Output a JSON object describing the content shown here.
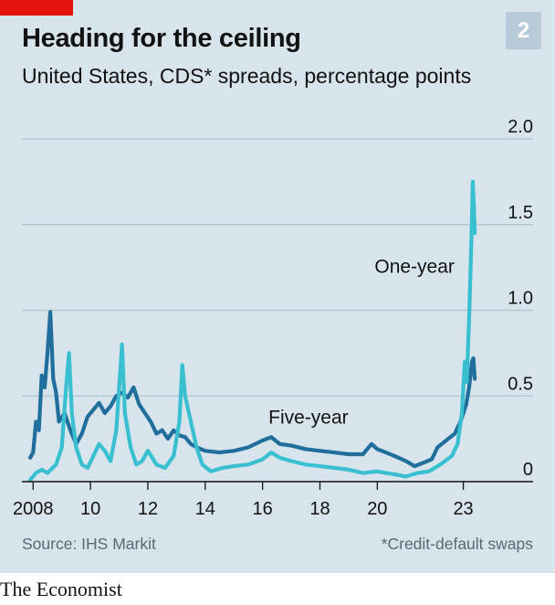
{
  "header": {
    "title": "Heading for the ceiling",
    "subtitle": "United States, CDS* spreads, percentage points",
    "badge": "2"
  },
  "footer": {
    "source": "Source: IHS Markit",
    "footnote": "*Credit-default swaps",
    "logo": "The Economist"
  },
  "colors": {
    "background": "#d7e4ec",
    "five_year": "#1f6e9c",
    "one_year": "#39c0d0",
    "gridline": "#b0c4cf",
    "axis": "#121212",
    "accent": "#e3120b"
  },
  "chart_data": {
    "type": "line",
    "title": "Heading for the ceiling",
    "subtitle": "United States, CDS* spreads, percentage points",
    "xlabel": "",
    "ylabel": "",
    "xlim": [
      2007.8,
      2023.65
    ],
    "ylim": [
      0,
      2.0
    ],
    "yticks": [
      0,
      0.5,
      1.0,
      1.5,
      2.0
    ],
    "ytick_labels": [
      "0",
      "0.5",
      "1.0",
      "1.5",
      "2.0"
    ],
    "yaxis_position": "right",
    "xticks": [
      2008,
      2010,
      2012,
      2014,
      2016,
      2018,
      2020,
      2023
    ],
    "xtick_labels": [
      "2008",
      "10",
      "12",
      "14",
      "16",
      "18",
      "20",
      "23"
    ],
    "grid": true,
    "legend": "inline labels",
    "series": [
      {
        "name": "Five-year",
        "color": "#1f6e9c",
        "label_at": [
          2017.6,
          0.34
        ],
        "points": [
          [
            2007.9,
            0.14
          ],
          [
            2008.0,
            0.17
          ],
          [
            2008.1,
            0.35
          ],
          [
            2008.2,
            0.3
          ],
          [
            2008.3,
            0.62
          ],
          [
            2008.4,
            0.55
          ],
          [
            2008.5,
            0.75
          ],
          [
            2008.6,
            0.99
          ],
          [
            2008.7,
            0.6
          ],
          [
            2008.8,
            0.52
          ],
          [
            2008.9,
            0.35
          ],
          [
            2009.1,
            0.4
          ],
          [
            2009.3,
            0.3
          ],
          [
            2009.5,
            0.22
          ],
          [
            2009.7,
            0.28
          ],
          [
            2009.9,
            0.38
          ],
          [
            2010.1,
            0.42
          ],
          [
            2010.3,
            0.46
          ],
          [
            2010.5,
            0.4
          ],
          [
            2010.7,
            0.44
          ],
          [
            2010.9,
            0.5
          ],
          [
            2011.1,
            0.52
          ],
          [
            2011.3,
            0.49
          ],
          [
            2011.5,
            0.55
          ],
          [
            2011.7,
            0.45
          ],
          [
            2011.9,
            0.4
          ],
          [
            2012.1,
            0.35
          ],
          [
            2012.3,
            0.28
          ],
          [
            2012.5,
            0.3
          ],
          [
            2012.7,
            0.25
          ],
          [
            2012.9,
            0.3
          ],
          [
            2013.1,
            0.27
          ],
          [
            2013.3,
            0.26
          ],
          [
            2013.5,
            0.22
          ],
          [
            2013.7,
            0.2
          ],
          [
            2014.0,
            0.18
          ],
          [
            2014.5,
            0.17
          ],
          [
            2015.0,
            0.18
          ],
          [
            2015.5,
            0.2
          ],
          [
            2016.0,
            0.24
          ],
          [
            2016.3,
            0.26
          ],
          [
            2016.6,
            0.22
          ],
          [
            2017.0,
            0.21
          ],
          [
            2017.5,
            0.19
          ],
          [
            2018.0,
            0.18
          ],
          [
            2018.5,
            0.17
          ],
          [
            2019.0,
            0.16
          ],
          [
            2019.5,
            0.16
          ],
          [
            2019.8,
            0.22
          ],
          [
            2020.0,
            0.19
          ],
          [
            2020.3,
            0.17
          ],
          [
            2020.6,
            0.15
          ],
          [
            2021.0,
            0.12
          ],
          [
            2021.3,
            0.09
          ],
          [
            2021.6,
            0.11
          ],
          [
            2021.9,
            0.13
          ],
          [
            2022.1,
            0.2
          ],
          [
            2022.4,
            0.24
          ],
          [
            2022.7,
            0.28
          ],
          [
            2022.9,
            0.35
          ],
          [
            2023.0,
            0.4
          ],
          [
            2023.1,
            0.45
          ],
          [
            2023.2,
            0.55
          ],
          [
            2023.3,
            0.7
          ],
          [
            2023.35,
            0.72
          ],
          [
            2023.4,
            0.6
          ]
        ]
      },
      {
        "name": "One-year",
        "color": "#39c0d0",
        "label_at": [
          2021.3,
          1.22
        ],
        "points": [
          [
            2007.9,
            0.01
          ],
          [
            2008.1,
            0.05
          ],
          [
            2008.3,
            0.07
          ],
          [
            2008.5,
            0.05
          ],
          [
            2008.8,
            0.1
          ],
          [
            2009.0,
            0.2
          ],
          [
            2009.15,
            0.55
          ],
          [
            2009.25,
            0.75
          ],
          [
            2009.35,
            0.4
          ],
          [
            2009.5,
            0.2
          ],
          [
            2009.7,
            0.1
          ],
          [
            2009.9,
            0.08
          ],
          [
            2010.1,
            0.15
          ],
          [
            2010.3,
            0.22
          ],
          [
            2010.5,
            0.18
          ],
          [
            2010.7,
            0.12
          ],
          [
            2010.9,
            0.3
          ],
          [
            2011.0,
            0.55
          ],
          [
            2011.1,
            0.8
          ],
          [
            2011.2,
            0.4
          ],
          [
            2011.4,
            0.2
          ],
          [
            2011.6,
            0.1
          ],
          [
            2011.8,
            0.12
          ],
          [
            2012.0,
            0.18
          ],
          [
            2012.3,
            0.1
          ],
          [
            2012.6,
            0.08
          ],
          [
            2012.9,
            0.15
          ],
          [
            2013.1,
            0.35
          ],
          [
            2013.2,
            0.68
          ],
          [
            2013.3,
            0.5
          ],
          [
            2013.5,
            0.35
          ],
          [
            2013.7,
            0.2
          ],
          [
            2013.9,
            0.1
          ],
          [
            2014.2,
            0.06
          ],
          [
            2014.6,
            0.08
          ],
          [
            2015.0,
            0.09
          ],
          [
            2015.5,
            0.1
          ],
          [
            2016.0,
            0.13
          ],
          [
            2016.3,
            0.17
          ],
          [
            2016.6,
            0.14
          ],
          [
            2017.0,
            0.12
          ],
          [
            2017.5,
            0.1
          ],
          [
            2018.0,
            0.09
          ],
          [
            2018.5,
            0.08
          ],
          [
            2019.0,
            0.07
          ],
          [
            2019.5,
            0.05
          ],
          [
            2020.0,
            0.06
          ],
          [
            2020.3,
            0.05
          ],
          [
            2020.7,
            0.04
          ],
          [
            2021.0,
            0.03
          ],
          [
            2021.4,
            0.05
          ],
          [
            2021.8,
            0.06
          ],
          [
            2022.2,
            0.1
          ],
          [
            2022.6,
            0.15
          ],
          [
            2022.8,
            0.22
          ],
          [
            2022.95,
            0.4
          ],
          [
            2023.05,
            0.7
          ],
          [
            2023.12,
            0.58
          ],
          [
            2023.2,
            0.95
          ],
          [
            2023.28,
            1.4
          ],
          [
            2023.33,
            1.75
          ],
          [
            2023.37,
            1.6
          ],
          [
            2023.4,
            1.45
          ]
        ]
      }
    ]
  }
}
